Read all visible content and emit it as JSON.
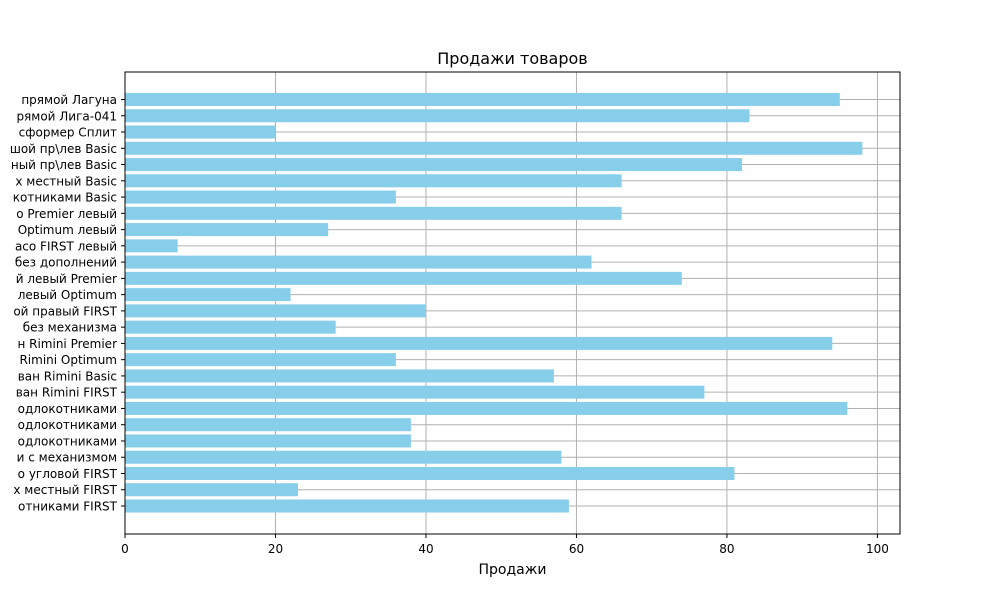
{
  "chart_data": {
    "type": "bar",
    "orientation": "horizontal",
    "title": "Продажи товаров",
    "xlabel": "Продажи",
    "ylabel": "",
    "xlim": [
      0,
      103
    ],
    "xticks": [
      0,
      20,
      40,
      60,
      80,
      100
    ],
    "grid": true,
    "bar_color": "#87CEEB",
    "categories": [
      "прямой Лагуна",
      "рямой Лига-041",
      "сформер Сплит",
      "шой пр\\лев Basic",
      "ный пр\\лев Basic",
      "х местный Basic",
      "котниками Basic",
      "о Premier левый",
      "Optimum левый",
      "асо FIRST левый",
      "без дополнений",
      "й левый Premier",
      "левый Optimum",
      "ой правый FIRST",
      "без механизма",
      "н Rimini Premier",
      "Rimini Optimum",
      "ван Rimini Basic",
      "ван Rimini FIRST",
      "одлокотниками",
      "одлокотниками",
      "одлокотниками",
      "и с механизмом",
      "о угловой FIRST",
      "х местный FIRST",
      "отниками FIRST"
    ],
    "values": [
      95,
      83,
      20,
      98,
      82,
      66,
      36,
      66,
      27,
      7,
      62,
      74,
      22,
      40,
      28,
      94,
      36,
      57,
      77,
      96,
      38,
      38,
      58,
      81,
      23,
      59
    ]
  }
}
